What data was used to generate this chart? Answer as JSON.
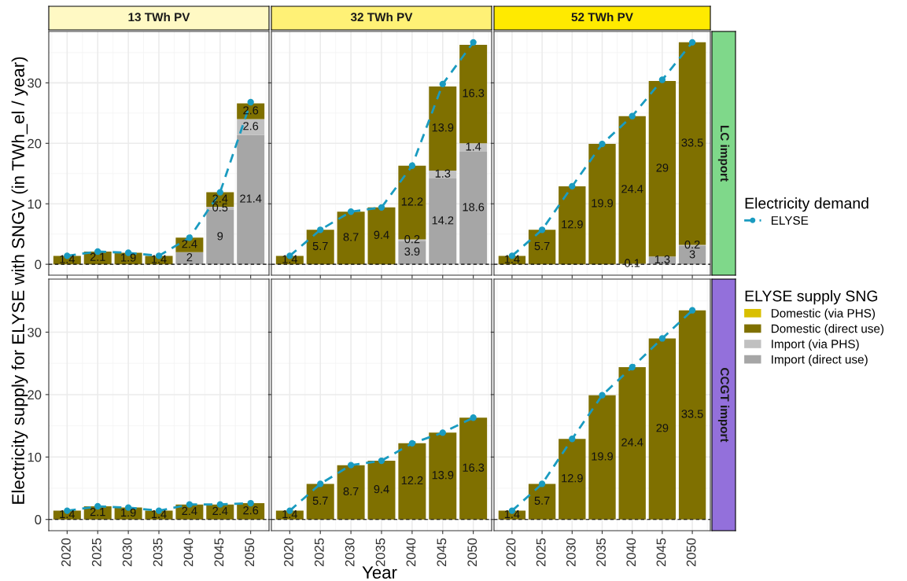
{
  "chart_data": [
    {
      "type": "bar",
      "stacked": true,
      "title": "13 TWh PV",
      "categories": [
        "2020",
        "2025",
        "2030",
        "2035",
        "2040",
        "2045",
        "2050"
      ],
      "ylim": [
        -1.8,
        38.5
      ],
      "yticks": [
        0,
        10,
        20,
        30
      ],
      "grid": true,
      "tick_labels": "y",
      "ylabel": "Electricity supply for ELYSE with SNGV (in TWh_el / year)",
      "ref_lines": [
        {
          "axis": "y",
          "value": 0,
          "color": "#000000",
          "line_style": "dashed"
        }
      ],
      "series": [
        {
          "color": "#a6a6a6",
          "values": [
            null,
            null,
            null,
            null,
            2,
            9,
            21.4
          ],
          "value_labels": [
            null,
            null,
            null,
            null,
            "2",
            "9",
            "21.4"
          ]
        },
        {
          "color": "#c0c0c0",
          "values": [
            null,
            null,
            null,
            null,
            null,
            0.5,
            2.6
          ],
          "value_labels": [
            null,
            null,
            null,
            null,
            null,
            "0.5",
            "2.6"
          ]
        },
        {
          "color": "#7f7000",
          "values": [
            1.4,
            2.1,
            1.9,
            1.4,
            2.4,
            2.4,
            2.6
          ],
          "value_labels": [
            "1.4",
            "2.1",
            "1.9",
            "1.4",
            "2.4",
            "2.4",
            "2.6"
          ]
        },
        {
          "color": "#d9bf00",
          "values": [
            null,
            null,
            null,
            null,
            null,
            null,
            null
          ]
        },
        {
          "type": "line",
          "color": "#1a9bc0",
          "marker": "circle",
          "line_style": "dashed",
          "values": [
            1.4,
            2.1,
            1.9,
            1.4,
            4.4,
            11.9,
            26.8
          ]
        }
      ]
    },
    {
      "type": "bar",
      "stacked": true,
      "title": "32 TWh PV",
      "categories": [
        "2020",
        "2025",
        "2030",
        "2035",
        "2040",
        "2045",
        "2050"
      ],
      "ylim": [
        -1.8,
        38.5
      ],
      "yticks": [
        0,
        10,
        20,
        30
      ],
      "grid": true,
      "tick_labels": false,
      "ref_lines": [
        {
          "axis": "y",
          "value": 0,
          "color": "#000000",
          "line_style": "dashed"
        }
      ],
      "series": [
        {
          "color": "#a6a6a6",
          "values": [
            null,
            null,
            null,
            null,
            3.9,
            14.2,
            18.6
          ],
          "value_labels": [
            null,
            null,
            null,
            null,
            "3.9",
            "14.2",
            "18.6"
          ]
        },
        {
          "color": "#c0c0c0",
          "values": [
            null,
            null,
            null,
            null,
            0.2,
            1.3,
            1.4
          ],
          "value_labels": [
            null,
            null,
            null,
            null,
            "0.2",
            "1.3",
            "1.4"
          ]
        },
        {
          "color": "#7f7000",
          "values": [
            1.4,
            5.7,
            8.7,
            9.4,
            12.2,
            13.9,
            16.3
          ],
          "value_labels": [
            "1.4",
            "5.7",
            "8.7",
            "9.4",
            "12.2",
            "13.9",
            "16.3"
          ]
        },
        {
          "color": "#d9bf00",
          "values": [
            null,
            null,
            null,
            null,
            null,
            null,
            null
          ]
        },
        {
          "type": "line",
          "color": "#1a9bc0",
          "marker": "circle",
          "line_style": "dashed",
          "values": [
            1.4,
            5.7,
            8.7,
            9.4,
            16.3,
            29.8,
            36.7
          ]
        }
      ]
    },
    {
      "type": "bar",
      "stacked": true,
      "title": "52 TWh PV",
      "y2label": "LC import",
      "categories": [
        "2020",
        "2025",
        "2030",
        "2035",
        "2040",
        "2045",
        "2050"
      ],
      "ylim": [
        -1.8,
        38.5
      ],
      "yticks": [
        0,
        10,
        20,
        30
      ],
      "grid": true,
      "tick_labels": false,
      "legend": "right",
      "legend_title": "Electricity demand",
      "ref_lines": [
        {
          "axis": "y",
          "value": 0,
          "color": "#000000",
          "line_style": "dashed"
        }
      ],
      "series": [
        {
          "color": "#a6a6a6",
          "values": [
            null,
            null,
            null,
            null,
            0.1,
            1.3,
            3
          ],
          "value_labels": [
            null,
            null,
            null,
            null,
            "0.1",
            "1.3",
            "3"
          ]
        },
        {
          "color": "#c0c0c0",
          "values": [
            null,
            null,
            null,
            null,
            null,
            null,
            0.2
          ],
          "value_labels": [
            null,
            null,
            null,
            null,
            null,
            null,
            "0.2"
          ]
        },
        {
          "color": "#7f7000",
          "values": [
            1.4,
            5.7,
            12.9,
            19.9,
            24.4,
            29,
            33.5
          ],
          "value_labels": [
            "1.4",
            "5.7",
            "12.9",
            "19.9",
            "24.4",
            "29",
            "33.5"
          ]
        },
        {
          "color": "#d9bf00",
          "values": [
            null,
            null,
            null,
            null,
            null,
            null,
            null
          ]
        },
        {
          "type": "line",
          "name": "ELYSE",
          "color": "#1a9bc0",
          "marker": "circle",
          "line_style": "dashed",
          "values": [
            1.4,
            5.7,
            12.9,
            19.9,
            24.5,
            30.5,
            36.7
          ]
        }
      ]
    },
    {
      "type": "bar",
      "stacked": true,
      "categories": [
        "2020",
        "2025",
        "2030",
        "2035",
        "2040",
        "2045",
        "2050"
      ],
      "ylim": [
        -1.8,
        38.5
      ],
      "yticks": [
        0,
        10,
        20,
        30
      ],
      "grid": true,
      "ref_lines": [
        {
          "axis": "y",
          "value": 0,
          "color": "#000000",
          "line_style": "dashed"
        }
      ],
      "series": [
        {
          "color": "#7f7000",
          "values": [
            1.4,
            2.1,
            1.9,
            1.4,
            2.4,
            2.4,
            2.6
          ],
          "value_labels": [
            "1.4",
            "2.1",
            "1.9",
            "1.4",
            "2.4",
            "2.4",
            "2.6"
          ]
        },
        {
          "type": "line",
          "color": "#1a9bc0",
          "marker": "circle",
          "line_style": "dashed",
          "values": [
            1.4,
            2.1,
            1.9,
            1.4,
            2.4,
            2.4,
            2.6
          ]
        }
      ]
    },
    {
      "type": "bar",
      "stacked": true,
      "xlabel": "Year",
      "categories": [
        "2020",
        "2025",
        "2030",
        "2035",
        "2040",
        "2045",
        "2050"
      ],
      "ylim": [
        -1.8,
        38.5
      ],
      "yticks": [
        0,
        10,
        20,
        30
      ],
      "grid": true,
      "tick_labels": "x",
      "ref_lines": [
        {
          "axis": "y",
          "value": 0,
          "color": "#000000",
          "line_style": "dashed"
        }
      ],
      "series": [
        {
          "color": "#7f7000",
          "values": [
            1.4,
            5.7,
            8.7,
            9.4,
            12.2,
            13.9,
            16.3
          ],
          "value_labels": [
            "1.4",
            "5.7",
            "8.7",
            "9.4",
            "12.2",
            "13.9",
            "16.3"
          ]
        },
        {
          "type": "line",
          "color": "#1a9bc0",
          "marker": "circle",
          "line_style": "dashed",
          "values": [
            1.4,
            5.7,
            8.7,
            9.4,
            12.2,
            13.9,
            16.3
          ]
        }
      ]
    },
    {
      "type": "bar",
      "stacked": true,
      "y2label": "CCGT import",
      "categories": [
        "2020",
        "2025",
        "2030",
        "2035",
        "2040",
        "2045",
        "2050"
      ],
      "ylim": [
        -1.8,
        38.5
      ],
      "yticks": [
        0,
        10,
        20,
        30
      ],
      "grid": true,
      "tick_labels": "x",
      "legend": "right",
      "legend_title": "ELYSE supply SNG",
      "ref_lines": [
        {
          "axis": "y",
          "value": 0,
          "color": "#000000",
          "line_style": "dashed"
        }
      ],
      "series": [
        {
          "name": "Import (direct use)",
          "color": "#a6a6a6",
          "values": [
            null,
            null,
            null,
            null,
            null,
            null,
            null
          ]
        },
        {
          "name": "Import (via PHS)",
          "color": "#c0c0c0",
          "values": [
            null,
            null,
            null,
            null,
            null,
            null,
            null
          ]
        },
        {
          "name": "Domestic (direct use)",
          "color": "#7f7000",
          "values": [
            1.4,
            5.7,
            12.9,
            19.9,
            24.4,
            29,
            33.5
          ],
          "value_labels": [
            "1.4",
            "5.7",
            "12.9",
            "19.9",
            "24.4",
            "29",
            "33.5"
          ]
        },
        {
          "name": "Domestic (via PHS)",
          "color": "#d9bf00",
          "values": [
            null,
            null,
            null,
            null,
            null,
            null,
            null
          ]
        },
        {
          "type": "line",
          "color": "#1a9bc0",
          "marker": "circle",
          "line_style": "dashed",
          "values": [
            1.4,
            5.7,
            12.9,
            19.9,
            24.4,
            29,
            33.5
          ]
        }
      ]
    }
  ]
}
